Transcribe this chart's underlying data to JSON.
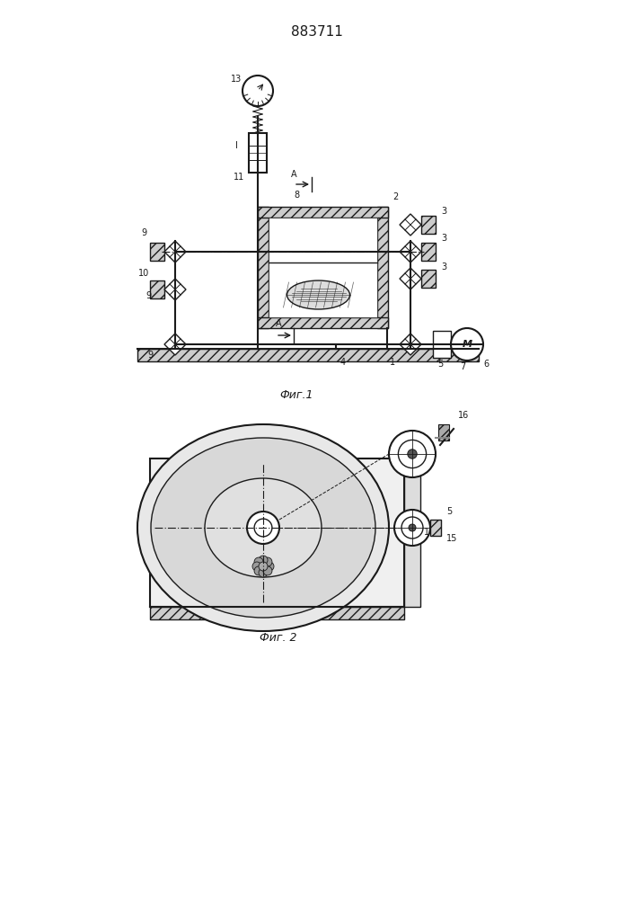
{
  "title": "883711",
  "fig1_caption": "Фиг.1",
  "fig2_caption": "Фиг. 2",
  "bg_color": "#ffffff",
  "line_color": "#1a1a1a"
}
